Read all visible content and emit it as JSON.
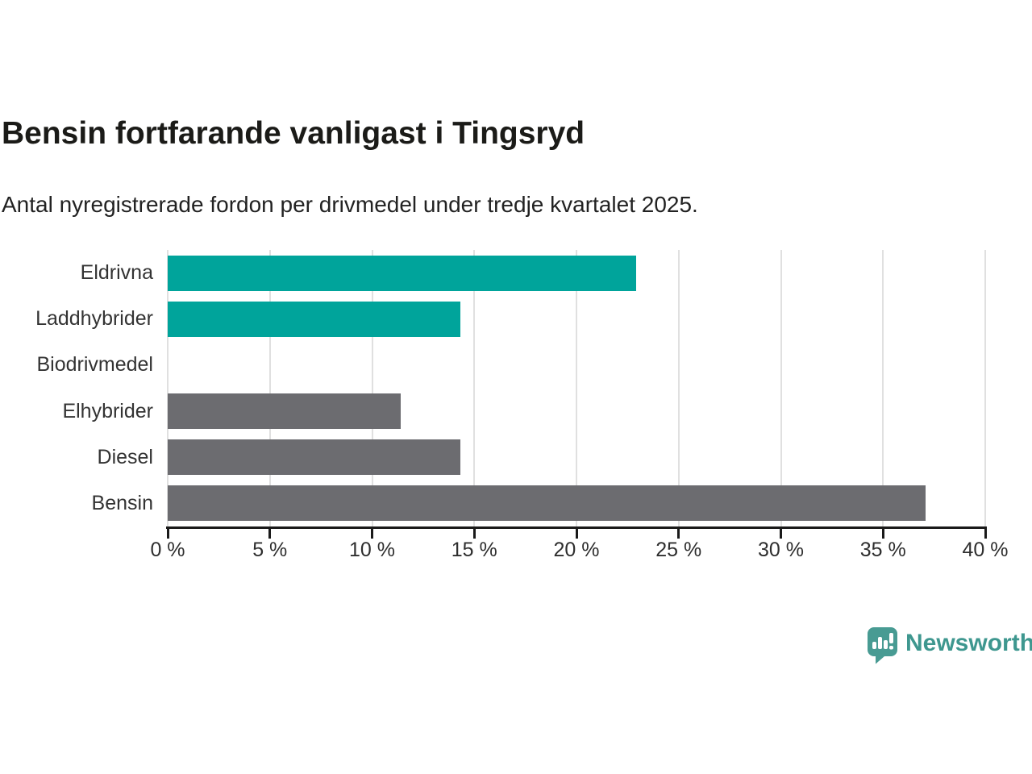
{
  "header": {
    "title": "Bensin fortfarande vanligast i Tingsryd",
    "subtitle": "Antal nyregistrerade fordon per drivmedel under tredje kvartalet 2025."
  },
  "colors": {
    "teal": "#00a49b",
    "gray": "#6c6c70",
    "grid": "#e0e0e0",
    "axis": "#1a1a1a",
    "tick_label": "#2e2e2e",
    "category_label": "#333333",
    "logo_teal": "#3e978f"
  },
  "chart_data": {
    "type": "bar",
    "orientation": "horizontal",
    "title": "Bensin fortfarande vanligast i Tingsryd",
    "subtitle": "Antal nyregistrerade fordon per drivmedel under tredje kvartalet 2025.",
    "categories": [
      "Eldrivna",
      "Laddhybrider",
      "Biodrivmedel",
      "Elhybrider",
      "Diesel",
      "Bensin"
    ],
    "values": [
      22.9,
      14.3,
      0,
      11.4,
      14.3,
      37.1
    ],
    "bar_colors": [
      "#00a49b",
      "#00a49b",
      "#6c6c70",
      "#6c6c70",
      "#6c6c70",
      "#6c6c70"
    ],
    "xlabel": "",
    "ylabel": "",
    "xlim": [
      0,
      40
    ],
    "x_tick_values": [
      0,
      5,
      10,
      15,
      20,
      25,
      30,
      35,
      40
    ],
    "x_tick_labels": [
      "0 %",
      "5 %",
      "10 %",
      "15 %",
      "20 %",
      "25 %",
      "30 %",
      "35 %",
      "40 %"
    ],
    "grid": true,
    "legend": false
  },
  "footer": {
    "brand": "Newsworthy"
  }
}
